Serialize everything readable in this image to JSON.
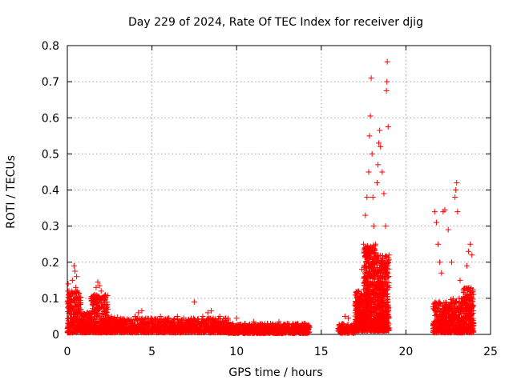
{
  "chart_data": {
    "type": "scatter",
    "title": "Day 229 of 2024, Rate Of TEC Index for receiver djig",
    "xlabel": "GPS time / hours",
    "ylabel": "ROTI / TECUs",
    "xlim": [
      0,
      25
    ],
    "ylim": [
      0,
      0.8
    ],
    "xticks": [
      0,
      5,
      10,
      15,
      20,
      25
    ],
    "xtick_labels": [
      "0",
      "5",
      "10",
      "15",
      "20",
      "25"
    ],
    "yticks": [
      0,
      0.1,
      0.2,
      0.3,
      0.4,
      0.5,
      0.6,
      0.7,
      0.8
    ],
    "ytick_labels": [
      "0",
      "0.1",
      "0.2",
      "0.3",
      "0.4",
      "0.5",
      "0.6",
      "0.7",
      "0.8"
    ],
    "grid": true,
    "marker": "+",
    "marker_color": "#ff0000",
    "series": [
      {
        "name": "ROTI",
        "points": [
          [
            0.05,
            0.14
          ],
          [
            0.1,
            0.12
          ],
          [
            0.2,
            0.09
          ],
          [
            0.3,
            0.15
          ],
          [
            0.4,
            0.19
          ],
          [
            0.45,
            0.175
          ],
          [
            0.5,
            0.13
          ],
          [
            0.55,
            0.16
          ],
          [
            0.6,
            0.1
          ],
          [
            0.7,
            0.07
          ],
          [
            0.8,
            0.05
          ],
          [
            1.0,
            0.03
          ],
          [
            1.2,
            0.06
          ],
          [
            1.5,
            0.08
          ],
          [
            1.6,
            0.11
          ],
          [
            1.7,
            0.13
          ],
          [
            1.8,
            0.145
          ],
          [
            1.9,
            0.135
          ],
          [
            2.0,
            0.12
          ],
          [
            2.2,
            0.09
          ],
          [
            2.4,
            0.07
          ],
          [
            2.6,
            0.04
          ],
          [
            2.8,
            0.03
          ],
          [
            3.0,
            0.02
          ],
          [
            3.5,
            0.03
          ],
          [
            4.0,
            0.05
          ],
          [
            4.2,
            0.06
          ],
          [
            4.4,
            0.065
          ],
          [
            5.0,
            0.04
          ],
          [
            5.5,
            0.05
          ],
          [
            6.0,
            0.045
          ],
          [
            6.5,
            0.05
          ],
          [
            7.0,
            0.04
          ],
          [
            7.5,
            0.09
          ],
          [
            8.0,
            0.05
          ],
          [
            8.3,
            0.06
          ],
          [
            8.5,
            0.065
          ],
          [
            9.0,
            0.05
          ],
          [
            9.5,
            0.04
          ],
          [
            10.0,
            0.045
          ],
          [
            10.5,
            0.03
          ],
          [
            11.0,
            0.035
          ],
          [
            11.5,
            0.025
          ],
          [
            12.0,
            0.03
          ],
          [
            12.5,
            0.035
          ],
          [
            13.0,
            0.03
          ],
          [
            13.5,
            0.025
          ],
          [
            14.0,
            0.03
          ],
          [
            14.3,
            0.02
          ],
          [
            16.2,
            0.02
          ],
          [
            16.4,
            0.05
          ],
          [
            16.6,
            0.045
          ],
          [
            16.9,
            0.03
          ],
          [
            17.0,
            0.08
          ],
          [
            17.2,
            0.12
          ],
          [
            17.4,
            0.18
          ],
          [
            17.5,
            0.25
          ],
          [
            17.6,
            0.33
          ],
          [
            17.7,
            0.38
          ],
          [
            17.8,
            0.45
          ],
          [
            17.85,
            0.55
          ],
          [
            17.9,
            0.605
          ],
          [
            17.95,
            0.71
          ],
          [
            18.0,
            0.5
          ],
          [
            18.05,
            0.38
          ],
          [
            18.1,
            0.3
          ],
          [
            18.2,
            0.25
          ],
          [
            18.3,
            0.42
          ],
          [
            18.35,
            0.47
          ],
          [
            18.4,
            0.53
          ],
          [
            18.45,
            0.565
          ],
          [
            18.5,
            0.52
          ],
          [
            18.6,
            0.45
          ],
          [
            18.7,
            0.39
          ],
          [
            18.8,
            0.3
          ],
          [
            18.85,
            0.675
          ],
          [
            18.88,
            0.7
          ],
          [
            18.9,
            0.755
          ],
          [
            18.95,
            0.575
          ],
          [
            19.0,
            0.22
          ],
          [
            21.7,
            0.34
          ],
          [
            21.8,
            0.31
          ],
          [
            21.9,
            0.25
          ],
          [
            22.0,
            0.2
          ],
          [
            22.1,
            0.17
          ],
          [
            22.2,
            0.34
          ],
          [
            22.3,
            0.345
          ],
          [
            22.5,
            0.29
          ],
          [
            22.7,
            0.2
          ],
          [
            22.9,
            0.38
          ],
          [
            22.95,
            0.4
          ],
          [
            23.0,
            0.42
          ],
          [
            23.05,
            0.34
          ],
          [
            23.2,
            0.15
          ],
          [
            23.4,
            0.12
          ],
          [
            23.6,
            0.19
          ],
          [
            23.7,
            0.23
          ],
          [
            23.8,
            0.25
          ],
          [
            23.9,
            0.22
          ],
          [
            24.0,
            0.03
          ]
        ]
      }
    ],
    "dense_segments": [
      {
        "x_start": 0.0,
        "x_end": 0.8,
        "min": 0.005,
        "max": 0.12,
        "count": 260
      },
      {
        "x_start": 0.8,
        "x_end": 1.4,
        "min": 0.005,
        "max": 0.06,
        "count": 140
      },
      {
        "x_start": 1.4,
        "x_end": 2.4,
        "min": 0.005,
        "max": 0.11,
        "count": 280
      },
      {
        "x_start": 2.4,
        "x_end": 3.0,
        "min": 0.005,
        "max": 0.05,
        "count": 110
      },
      {
        "x_start": 3.0,
        "x_end": 9.5,
        "min": 0.005,
        "max": 0.045,
        "count": 900
      },
      {
        "x_start": 9.5,
        "x_end": 14.3,
        "min": 0.003,
        "max": 0.03,
        "count": 620
      },
      {
        "x_start": 16.0,
        "x_end": 17.0,
        "min": 0.003,
        "max": 0.03,
        "count": 110
      },
      {
        "x_start": 17.0,
        "x_end": 17.5,
        "min": 0.01,
        "max": 0.12,
        "count": 220
      },
      {
        "x_start": 17.5,
        "x_end": 18.2,
        "min": 0.01,
        "max": 0.25,
        "count": 520
      },
      {
        "x_start": 18.2,
        "x_end": 19.0,
        "min": 0.01,
        "max": 0.22,
        "count": 480
      },
      {
        "x_start": 21.6,
        "x_end": 22.6,
        "min": 0.005,
        "max": 0.09,
        "count": 250
      },
      {
        "x_start": 22.6,
        "x_end": 23.4,
        "min": 0.005,
        "max": 0.1,
        "count": 240
      },
      {
        "x_start": 23.4,
        "x_end": 24.0,
        "min": 0.005,
        "max": 0.13,
        "count": 220
      }
    ]
  }
}
